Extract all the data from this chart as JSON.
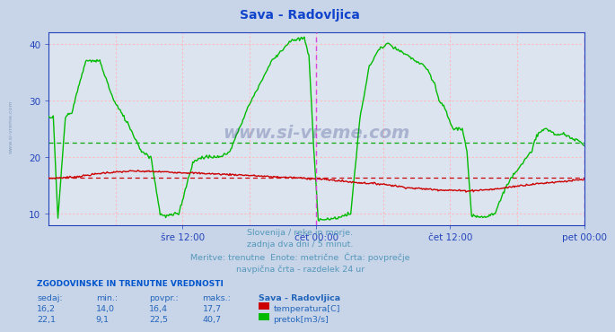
{
  "title": "Sava - Radovljica",
  "title_color": "#1144cc",
  "bg_color": "#c8d4e8",
  "plot_bg_color": "#dce4f0",
  "grid_color": "#ffbbbb",
  "xlim": [
    0,
    576
  ],
  "ylim": [
    8,
    42
  ],
  "yticks": [
    10,
    20,
    30,
    40
  ],
  "xtick_positions": [
    144,
    288,
    432,
    576
  ],
  "xtick_labels": [
    "šre 12:00",
    "čet 00:00",
    "čet 12:00",
    "pet 00:00"
  ],
  "vline_positions": [
    288,
    576
  ],
  "vline_color": "#dd44dd",
  "avg_temp": 16.4,
  "avg_flow": 22.5,
  "avg_temp_color": "#cc0000",
  "avg_flow_color": "#00aa00",
  "temp_color": "#cc0000",
  "flow_color": "#00bb00",
  "border_color": "#2244bb",
  "watermark": "www.si-vreme.com",
  "watermark_color": "#334488",
  "subtitle_lines": [
    "Slovenija / reke in morje.",
    "zadnja dva dni / 5 minut.",
    "Meritve: trenutne  Enote: metrične  Črta: povprečje",
    "navpična črta - razdelek 24 ur"
  ],
  "subtitle_color": "#5599bb",
  "table_header": "ZGODOVINSKE IN TRENUTNE VREDNOSTI",
  "table_header_color": "#0055cc",
  "table_color": "#2266bb",
  "col_headers": [
    "sedaj:",
    "min.:",
    "povpr.:",
    "maks.:",
    "Sava - Radovljica"
  ],
  "row1": [
    "16,2",
    "14,0",
    "16,4",
    "17,7",
    "temperatura[C]"
  ],
  "row2": [
    "22,1",
    "9,1",
    "22,5",
    "40,7",
    "pretok[m3/s]"
  ],
  "row1_sq_color": "#cc0000",
  "row2_sq_color": "#00bb00",
  "sidebar_text": "www.si-vreme.com",
  "sidebar_color": "#6688aa"
}
